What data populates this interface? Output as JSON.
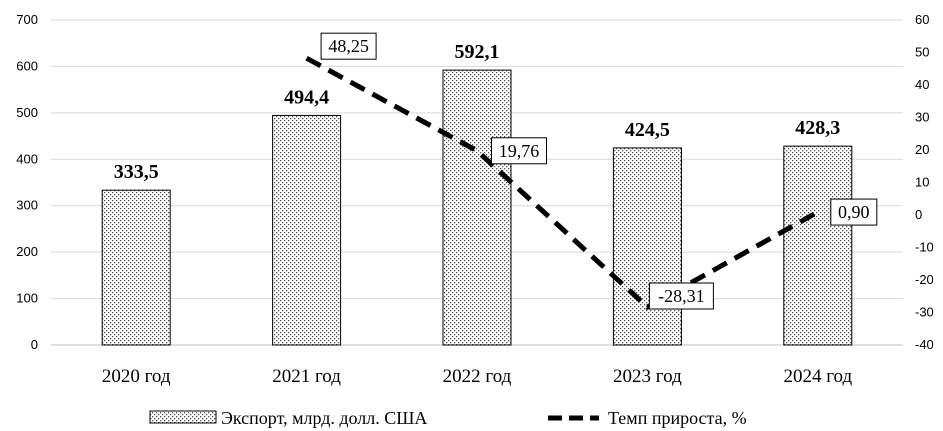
{
  "chart_data": {
    "type": "bar",
    "categories": [
      "2020 год",
      "2021 год",
      "2022 год",
      "2023 год",
      "2024 год"
    ],
    "series": [
      {
        "name": "Экспорт, млрд. долл. США",
        "type": "bar",
        "axis": "left",
        "values": [
          333.5,
          494.4,
          592.1,
          424.5,
          428.3
        ],
        "labels": [
          "333,5",
          "494,4",
          "592,1",
          "424,5",
          "428,3"
        ]
      },
      {
        "name": "Темп прироста, %",
        "type": "line",
        "style": "dashed",
        "axis": "right",
        "values": [
          null,
          48.25,
          19.76,
          -28.31,
          0.9
        ],
        "labels": [
          "",
          "48,25",
          "19,76",
          "-28,31",
          "0,90"
        ]
      }
    ],
    "y_left": {
      "min": 0,
      "max": 700,
      "ticks": [
        0,
        100,
        200,
        300,
        400,
        500,
        600,
        700
      ]
    },
    "y_right": {
      "min": -40,
      "max": 60,
      "ticks": [
        -40,
        -30,
        -20,
        -10,
        0,
        10,
        20,
        30,
        40,
        50,
        60
      ]
    },
    "legend_position": "bottom",
    "grid": true,
    "colors": {
      "grid": "#d9d9d9",
      "bar_stroke": "#000000",
      "line": "#000000",
      "background": "#ffffff"
    }
  }
}
